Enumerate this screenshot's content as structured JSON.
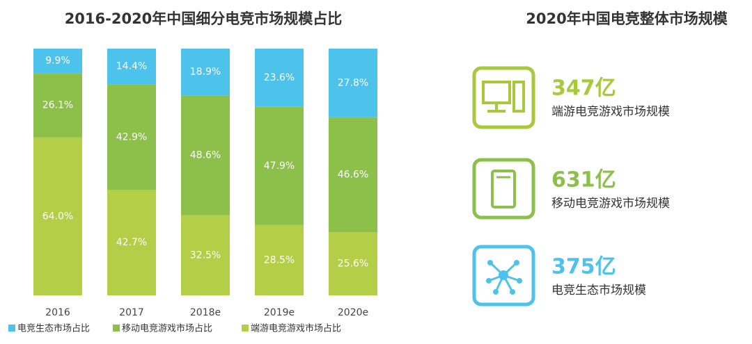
{
  "chart_data": {
    "type": "stacked_bar",
    "title": "2016-2020年中国细分电竞市场规模占比",
    "categories": [
      "2016",
      "2017",
      "2018e",
      "2019e",
      "2020e"
    ],
    "ylim": [
      0,
      100
    ],
    "series": [
      {
        "name": "电竞生态市场占比",
        "color": "#4dc3ec",
        "values": [
          9.9,
          14.4,
          18.9,
          23.6,
          27.8
        ],
        "value_labels": [
          "9.9%",
          "14.4%",
          "18.9%",
          "23.6%",
          "27.8%"
        ]
      },
      {
        "name": "移动电竞游戏市场占比",
        "color": "#8cc04b",
        "values": [
          26.1,
          42.9,
          48.6,
          47.9,
          46.6
        ],
        "value_labels": [
          "26.1%",
          "42.9%",
          "48.6%",
          "47.9%",
          "46.6%"
        ]
      },
      {
        "name": "端游电竞游戏市场占比",
        "color": "#b4cf47",
        "values": [
          64.0,
          42.7,
          32.5,
          28.5,
          25.6
        ],
        "value_labels": [
          "64.0%",
          "42.7%",
          "32.5%",
          "28.5%",
          "25.6%"
        ]
      }
    ],
    "legend": "bottom"
  },
  "summary": {
    "title": "2020年中国电竞整体市场规模",
    "items": [
      {
        "value": "347亿",
        "label": "端游电竞游戏市场规模",
        "color": "#a9c83c"
      },
      {
        "value": "631亿",
        "label": "移动电竞游戏市场规模",
        "color": "#8cc04b"
      },
      {
        "value": "375亿",
        "label": "电竞生态市场规模",
        "color": "#4dc3ec"
      }
    ]
  }
}
